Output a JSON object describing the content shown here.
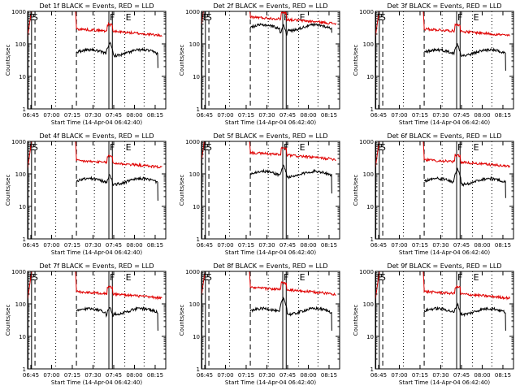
{
  "chart_data": {
    "type": "line",
    "yscale": "log",
    "xlabel": "Start Time (14-Apr-04 06:42:40)",
    "ylabel": "Counts/sec",
    "x_ticks": [
      "06:45",
      "07:00",
      "07:15",
      "07:30",
      "07:45",
      "08:00",
      "08:15"
    ],
    "y_ticks": [
      "1",
      "10",
      "100",
      "1000"
    ],
    "xlim": [
      "06:42:40",
      "08:22:40"
    ],
    "ylim": [
      1,
      1000
    ],
    "colors": {
      "events": "#000000",
      "lld": "#e00000"
    },
    "panels": [
      {
        "title": "Det 1f BLACK = Events, RED = LLD",
        "lld_base": 180,
        "evt_base": 55,
        "evt_end": 18,
        "peak": 110
      },
      {
        "title": "Det 2f BLACK = Events, RED = LLD",
        "lld_base": 420,
        "evt_base": 320,
        "evt_end": 220,
        "peak": 380
      },
      {
        "title": "Det 3f BLACK = Events, RED = LLD",
        "lld_base": 180,
        "evt_base": 55,
        "evt_end": 15,
        "peak": 100
      },
      {
        "title": "Det 4f BLACK = Events, RED = LLD",
        "lld_base": 160,
        "evt_base": 60,
        "evt_end": 15,
        "peak": 95
      },
      {
        "title": "Det 5f BLACK = Events, RED = LLD",
        "lld_base": 280,
        "evt_base": 100,
        "evt_end": 25,
        "peak": 180
      },
      {
        "title": "Det 6f BLACK = Events, RED = LLD",
        "lld_base": 170,
        "evt_base": 60,
        "evt_end": 18,
        "peak": 140
      },
      {
        "title": "Det 7f BLACK = Events, RED = LLD",
        "lld_base": 150,
        "evt_base": 60,
        "evt_end": 15,
        "peak": 80
      },
      {
        "title": "Det 8f BLACK = Events, RED = LLD",
        "lld_base": 200,
        "evt_base": 60,
        "evt_end": 15,
        "peak": 150
      },
      {
        "title": "Det 9f BLACK = Events, RED = LLD",
        "lld_base": 150,
        "evt_base": 60,
        "evt_end": 15,
        "peak": 100
      }
    ],
    "markers": [
      {
        "label": "E",
        "time": "06:43:00",
        "style": "solid"
      },
      {
        "label": "S",
        "time": "06:45:30",
        "style": "solid"
      },
      {
        "label": "",
        "time": "06:48:00",
        "style": "dashed"
      },
      {
        "label": "",
        "time": "07:03:00",
        "style": "dotted"
      },
      {
        "label": "",
        "time": "07:18:00",
        "style": "dashed"
      },
      {
        "label": "",
        "time": "07:31:00",
        "style": "dotted"
      },
      {
        "label": "F",
        "time": "07:41:30",
        "style": "solid"
      },
      {
        "label": "",
        "time": "07:44:00",
        "style": "solid"
      },
      {
        "label": "E",
        "time": "07:53:00",
        "style": "dotted"
      },
      {
        "label": "",
        "time": "08:07:00",
        "style": "dotted"
      }
    ]
  }
}
